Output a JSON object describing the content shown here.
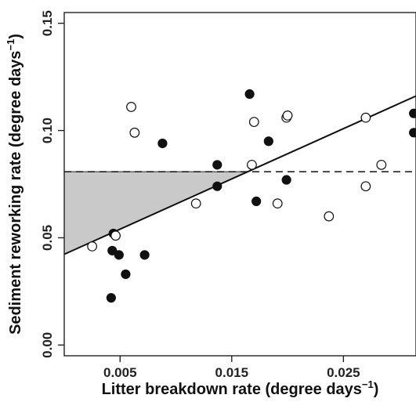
{
  "chart_data": {
    "type": "scatter",
    "title": "",
    "xlabel": {
      "text": "Litter breakdown rate (degree days",
      "sup": "−1",
      "close": ")"
    },
    "ylabel": {
      "text": "Sediment reworking rate (degree days",
      "sup": "−1",
      "close": ")"
    },
    "xlim": [
      0.0,
      0.0315
    ],
    "ylim": [
      -0.005,
      0.155
    ],
    "x_ticks": [
      0.005,
      0.015,
      0.025
    ],
    "x_tick_labels": [
      "0.005",
      "0.015",
      "0.025"
    ],
    "y_ticks": [
      0.0,
      0.05,
      0.1,
      0.15
    ],
    "y_tick_labels": [
      "0.00",
      "0.05",
      "0.10",
      "0.15"
    ],
    "grid": false,
    "legend": "none",
    "series": [
      {
        "marker": "filled",
        "color": "#111111",
        "points": [
          [
            0.0044,
            0.052
          ],
          [
            0.0043,
            0.044
          ],
          [
            0.0049,
            0.042
          ],
          [
            0.0072,
            0.042
          ],
          [
            0.0055,
            0.033
          ],
          [
            0.0042,
            0.022
          ],
          [
            0.0088,
            0.094
          ],
          [
            0.0137,
            0.084
          ],
          [
            0.0137,
            0.074
          ],
          [
            0.0166,
            0.117
          ],
          [
            0.0183,
            0.095
          ],
          [
            0.0172,
            0.067
          ],
          [
            0.0199,
            0.077
          ],
          [
            0.0313,
            0.108
          ],
          [
            0.0313,
            0.099
          ]
        ]
      },
      {
        "marker": "open",
        "color": "#111111",
        "points": [
          [
            0.0025,
            0.046
          ],
          [
            0.0046,
            0.051
          ],
          [
            0.006,
            0.111
          ],
          [
            0.0063,
            0.099
          ],
          [
            0.0118,
            0.066
          ],
          [
            0.0168,
            0.084
          ],
          [
            0.017,
            0.104
          ],
          [
            0.0191,
            0.066
          ],
          [
            0.0199,
            0.106
          ],
          [
            0.02,
            0.107
          ],
          [
            0.0237,
            0.06
          ],
          [
            0.027,
            0.106
          ],
          [
            0.027,
            0.074
          ],
          [
            0.0284,
            0.084
          ]
        ]
      }
    ],
    "regression_line": {
      "x": [
        0.0,
        0.0315
      ],
      "y": [
        0.0423,
        0.1161
      ]
    },
    "threshold_line": {
      "y": 0.0808,
      "x": [
        0.0,
        0.0315
      ],
      "style": "dashed"
    },
    "shaded_region": {
      "color": "#c9c9c9"
    }
  }
}
